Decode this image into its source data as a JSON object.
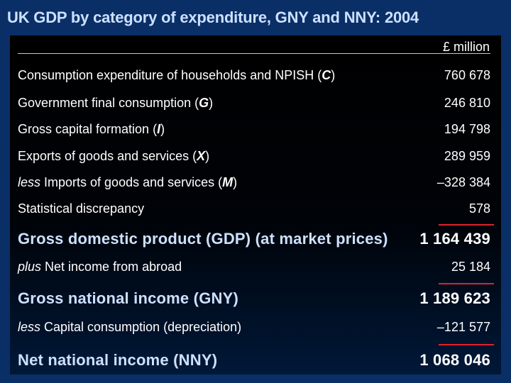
{
  "title": "UK GDP by category of expenditure, GNY and NNY: 2004",
  "unit": "£ million",
  "rows": [
    {
      "prefix": "",
      "label": "Consumption expenditure of households and NPISH (",
      "code": "C",
      "suffix": ")",
      "value": "760 678"
    },
    {
      "prefix": "",
      "label": "Government final consumption (",
      "code": "G",
      "suffix": ")",
      "value": "246 810"
    },
    {
      "prefix": "",
      "label": "Gross capital formation (",
      "code": "I",
      "suffix": ")",
      "value": "194 798"
    },
    {
      "prefix": "",
      "label": "Exports of goods and services (",
      "code": "X",
      "suffix": ")",
      "value": "289 959"
    },
    {
      "prefix": "less",
      "label": " Imports of goods and services (",
      "code": "M",
      "suffix": ")",
      "value": "–328 384"
    },
    {
      "prefix": "",
      "label": "Statistical discrepancy",
      "code": "",
      "suffix": "",
      "value": "578"
    }
  ],
  "gdp": {
    "label": "Gross domestic product (GDP) (at market prices)",
    "value": "1 164 439"
  },
  "net_income": {
    "prefix": "plus",
    "label": " Net  income from abroad",
    "value": "25 184"
  },
  "gny": {
    "label": "Gross national income (GNY)",
    "value": "1 189 623"
  },
  "depreciation": {
    "prefix": "less",
    "label": " Capital consumption (depreciation)",
    "value": "–121 577"
  },
  "nny": {
    "label": "Net national income (NNY)",
    "value": "1 068 046"
  },
  "colors": {
    "background": "#0a2f66",
    "panel": "#000000",
    "heading": "#cde0ff",
    "text": "#ffffff",
    "rule": "#e0222b"
  }
}
